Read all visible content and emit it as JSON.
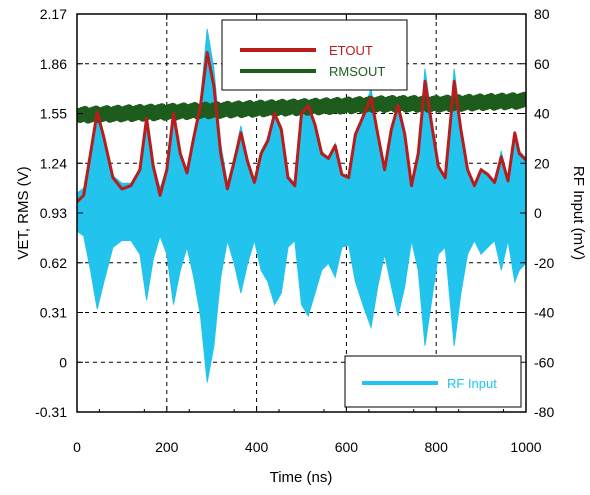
{
  "chart_data": {
    "type": "line",
    "title": "",
    "xlabel": "Time (ns)",
    "ylabel_left": "VET, RMS (V)",
    "ylabel_right": "RF Input (mV)",
    "xlim": [
      0,
      1000
    ],
    "ylim_left": [
      -0.31,
      2.17
    ],
    "ylim_right": [
      -80,
      80
    ],
    "x_ticks": [
      "0",
      "200",
      "400",
      "600",
      "800",
      "1000"
    ],
    "y_left_ticks": [
      "2.17",
      "1.86",
      "1.55",
      "1.24",
      "0.93",
      "0.62",
      "0.31",
      "0",
      "-0.31"
    ],
    "y_right_ticks": [
      "80",
      "60",
      "40",
      "20",
      "0",
      "-20",
      "-40",
      "-60",
      "-80"
    ],
    "grid": "dashed",
    "legend_top": {
      "placement": "top-center",
      "entries": [
        "ETOUT",
        "RMSOUT"
      ]
    },
    "legend_bottom": {
      "placement": "bottom-right",
      "entries": [
        "RF Input"
      ]
    },
    "colors": {
      "etout": "#b81c1c",
      "rmsout": "#1e5c1e",
      "rf_input": "#22c3ec"
    },
    "series": [
      {
        "name": "ETOUT",
        "axis": "left",
        "x": [
          0,
          15,
          30,
          45,
          60,
          80,
          100,
          120,
          140,
          155,
          170,
          185,
          200,
          215,
          230,
          245,
          260,
          275,
          290,
          305,
          320,
          335,
          350,
          365,
          380,
          395,
          410,
          425,
          440,
          455,
          470,
          485,
          500,
          515,
          530,
          545,
          560,
          575,
          590,
          605,
          620,
          640,
          655,
          670,
          685,
          700,
          715,
          730,
          745,
          760,
          775,
          790,
          805,
          820,
          840,
          855,
          870,
          885,
          900,
          915,
          930,
          945,
          960,
          975,
          985,
          1000
        ],
        "y": [
          1.0,
          1.04,
          1.3,
          1.56,
          1.4,
          1.15,
          1.08,
          1.1,
          1.2,
          1.52,
          1.22,
          1.04,
          1.2,
          1.55,
          1.3,
          1.18,
          1.4,
          1.6,
          1.93,
          1.72,
          1.3,
          1.08,
          1.25,
          1.43,
          1.25,
          1.12,
          1.3,
          1.38,
          1.55,
          1.45,
          1.15,
          1.1,
          1.55,
          1.6,
          1.48,
          1.3,
          1.27,
          1.35,
          1.17,
          1.15,
          1.42,
          1.55,
          1.65,
          1.42,
          1.2,
          1.45,
          1.6,
          1.42,
          1.1,
          1.3,
          1.75,
          1.48,
          1.22,
          1.15,
          1.75,
          1.45,
          1.2,
          1.1,
          1.2,
          1.17,
          1.12,
          1.28,
          1.13,
          1.43,
          1.3,
          1.26
        ]
      },
      {
        "name": "RMSOUT",
        "axis": "left",
        "x": [
          0,
          100,
          200,
          300,
          400,
          500,
          600,
          700,
          800,
          900,
          1000
        ],
        "y": [
          1.54,
          1.55,
          1.56,
          1.57,
          1.58,
          1.59,
          1.6,
          1.61,
          1.61,
          1.62,
          1.63
        ]
      },
      {
        "name": "RF Input",
        "axis": "right",
        "x": [
          0,
          15,
          30,
          45,
          60,
          80,
          100,
          120,
          140,
          155,
          170,
          185,
          200,
          215,
          230,
          245,
          260,
          275,
          290,
          305,
          320,
          335,
          350,
          365,
          380,
          395,
          410,
          425,
          440,
          455,
          470,
          485,
          500,
          515,
          530,
          545,
          560,
          575,
          590,
          605,
          620,
          640,
          655,
          670,
          685,
          700,
          715,
          730,
          745,
          760,
          775,
          790,
          805,
          820,
          840,
          855,
          870,
          885,
          900,
          915,
          930,
          945,
          960,
          975,
          985,
          1000
        ],
        "y": [
          8,
          10,
          25,
          42,
          30,
          15,
          12,
          12,
          18,
          38,
          20,
          10,
          18,
          40,
          25,
          15,
          28,
          45,
          74,
          58,
          28,
          12,
          22,
          35,
          22,
          12,
          25,
          30,
          40,
          35,
          15,
          12,
          40,
          45,
          35,
          25,
          22,
          28,
          15,
          14,
          30,
          42,
          50,
          32,
          18,
          32,
          45,
          32,
          12,
          25,
          58,
          38,
          18,
          15,
          58,
          35,
          18,
          12,
          18,
          15,
          12,
          25,
          12,
          30,
          25,
          22
        ]
      }
    ]
  }
}
